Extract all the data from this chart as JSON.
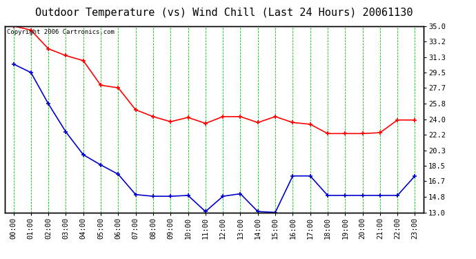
{
  "title": "Outdoor Temperature (vs) Wind Chill (Last 24 Hours) 20061130",
  "copyright_text": "Copyright 2006 Cartronics.com",
  "x_labels": [
    "00:00",
    "01:00",
    "02:00",
    "03:00",
    "04:00",
    "05:00",
    "06:00",
    "07:00",
    "08:00",
    "09:00",
    "10:00",
    "11:00",
    "12:00",
    "13:00",
    "14:00",
    "15:00",
    "16:00",
    "17:00",
    "18:00",
    "19:00",
    "20:00",
    "21:00",
    "22:00",
    "23:00"
  ],
  "y_ticks": [
    13.0,
    14.8,
    16.7,
    18.5,
    20.3,
    22.2,
    24.0,
    25.8,
    27.7,
    29.5,
    31.3,
    33.2,
    35.0
  ],
  "ylim": [
    13.0,
    35.0
  ],
  "temp_color": "#ff0000",
  "windchill_color": "#0000cc",
  "grid_color": "#00cc00",
  "grid_style": "--",
  "bg_color": "#ffffff",
  "plot_bg_color": "#ffffff",
  "border_color": "#000000",
  "temp_data": [
    35.0,
    34.5,
    32.3,
    31.5,
    30.9,
    28.0,
    27.7,
    25.1,
    24.3,
    23.7,
    24.2,
    23.5,
    24.3,
    24.3,
    23.6,
    24.3,
    23.6,
    23.4,
    22.3,
    22.3,
    22.3,
    22.4,
    23.9,
    23.9
  ],
  "windchill_data": [
    30.5,
    29.5,
    25.8,
    22.5,
    19.8,
    18.6,
    17.5,
    15.1,
    14.9,
    14.9,
    15.0,
    13.1,
    14.9,
    15.2,
    13.1,
    13.0,
    17.3,
    17.3,
    15.0,
    15.0,
    15.0,
    15.0,
    15.0,
    17.3
  ],
  "marker_style": "+",
  "marker_size": 5,
  "line_width": 1.2,
  "title_fontsize": 11,
  "tick_fontsize": 7.5,
  "copyright_fontsize": 6.5
}
